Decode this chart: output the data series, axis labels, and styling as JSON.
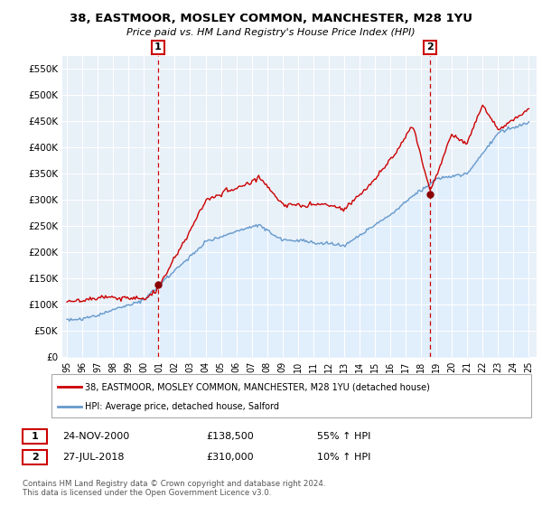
{
  "title": "38, EASTMOOR, MOSLEY COMMON, MANCHESTER, M28 1YU",
  "subtitle": "Price paid vs. HM Land Registry's House Price Index (HPI)",
  "ylabel_ticks": [
    "£0",
    "£50K",
    "£100K",
    "£150K",
    "£200K",
    "£250K",
    "£300K",
    "£350K",
    "£400K",
    "£450K",
    "£500K",
    "£550K"
  ],
  "ytick_values": [
    0,
    50000,
    100000,
    150000,
    200000,
    250000,
    300000,
    350000,
    400000,
    450000,
    500000,
    550000
  ],
  "ylim": [
    0,
    575000
  ],
  "xlim_min": 1994.7,
  "xlim_max": 2025.5,
  "legend_line1": "38, EASTMOOR, MOSLEY COMMON, MANCHESTER, M28 1YU (detached house)",
  "legend_line2": "HPI: Average price, detached house, Salford",
  "annotation1_date": "24-NOV-2000",
  "annotation1_price": "£138,500",
  "annotation1_hpi": "55% ↑ HPI",
  "annotation2_date": "27-JUL-2018",
  "annotation2_price": "£310,000",
  "annotation2_hpi": "10% ↑ HPI",
  "footer": "Contains HM Land Registry data © Crown copyright and database right 2024.\nThis data is licensed under the Open Government Licence v3.0.",
  "red_color": "#cc0000",
  "blue_color": "#6699cc",
  "blue_fill": "#ddeeff",
  "dashed_line_color": "#cc0000",
  "background_color": "#ffffff",
  "plot_bg_color": "#e8f0f8",
  "grid_color": "#ffffff"
}
